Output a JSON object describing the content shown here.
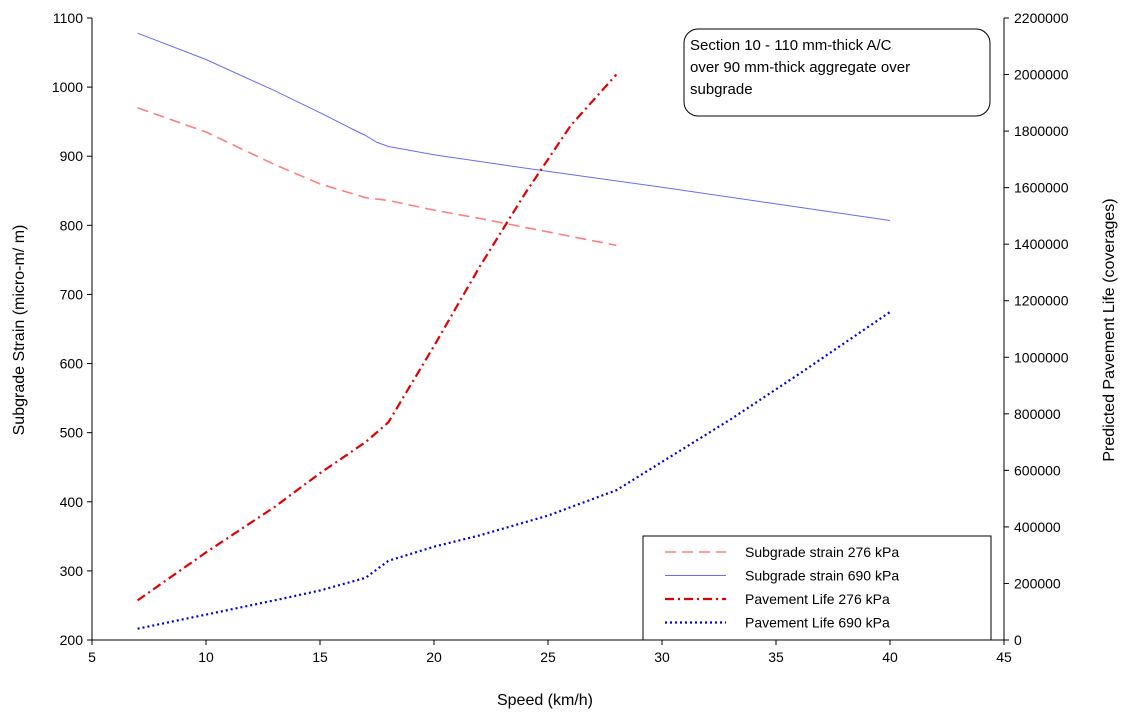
{
  "chart_data": {
    "type": "line",
    "title": "",
    "annotation": [
      "Section 10 - 110 mm-thick A/C",
      "over 90 mm-thick aggregate over",
      "subgrade"
    ],
    "xlabel": "Speed (km/h)",
    "ylabel": "Subgrade Strain  (micro-m/ m)",
    "y2label": "Predicted Pavement Life (coverages)",
    "xlim": [
      5,
      45
    ],
    "ylim": [
      200,
      1100
    ],
    "y2lim": [
      0,
      2200000
    ],
    "x_ticks": [
      "5",
      "10",
      "15",
      "20",
      "25",
      "30",
      "35",
      "40",
      "45"
    ],
    "y_ticks": [
      "200",
      "300",
      "400",
      "500",
      "600",
      "700",
      "800",
      "900",
      "1000",
      "1100"
    ],
    "y2_ticks": [
      "0",
      "200000",
      "400000",
      "600000",
      "800000",
      "1000000",
      "1200000",
      "1400000",
      "1600000",
      "1800000",
      "2000000",
      "2200000"
    ],
    "grid": false,
    "legend_position": "bottom-right",
    "series": [
      {
        "name": "Subgrade strain  276 kPa",
        "axis": "left",
        "color": "#ff7f7f",
        "dash": "long-dash",
        "x": [
          7,
          10,
          13,
          15,
          17,
          17.5,
          18,
          20,
          22,
          24,
          26,
          28
        ],
        "y": [
          970,
          935,
          888,
          860,
          840,
          838,
          836,
          822,
          810,
          797,
          784,
          771
        ]
      },
      {
        "name": "Subgrade strain  690 kPa",
        "axis": "left",
        "color": "#6a6aff",
        "dash": "solid",
        "x": [
          7,
          10,
          13,
          15,
          16.5,
          17,
          17.5,
          18,
          20,
          25,
          30,
          35,
          40
        ],
        "y": [
          1078,
          1040,
          995,
          963,
          938,
          930,
          920,
          914,
          902,
          878,
          855,
          831,
          807
        ]
      },
      {
        "name": "Pavement Life  276 kPa",
        "axis": "right",
        "color": "#e00000",
        "dash": "dash-dot",
        "x": [
          7,
          10,
          13,
          15,
          17,
          18,
          20,
          22,
          24,
          26,
          28
        ],
        "y": [
          140000,
          310000,
          470000,
          590000,
          700000,
          770000,
          1040000,
          1320000,
          1580000,
          1820000,
          2000000
        ]
      },
      {
        "name": "Pavement Life  690 kPa",
        "axis": "right",
        "color": "#0000dd",
        "dash": "dotted",
        "x": [
          7,
          10,
          13,
          15,
          17,
          18,
          20,
          22,
          25,
          28,
          30,
          33,
          36,
          40
        ],
        "y": [
          40000,
          90000,
          140000,
          175000,
          220000,
          280000,
          330000,
          370000,
          440000,
          530000,
          630000,
          780000,
          940000,
          1160000
        ]
      }
    ]
  }
}
